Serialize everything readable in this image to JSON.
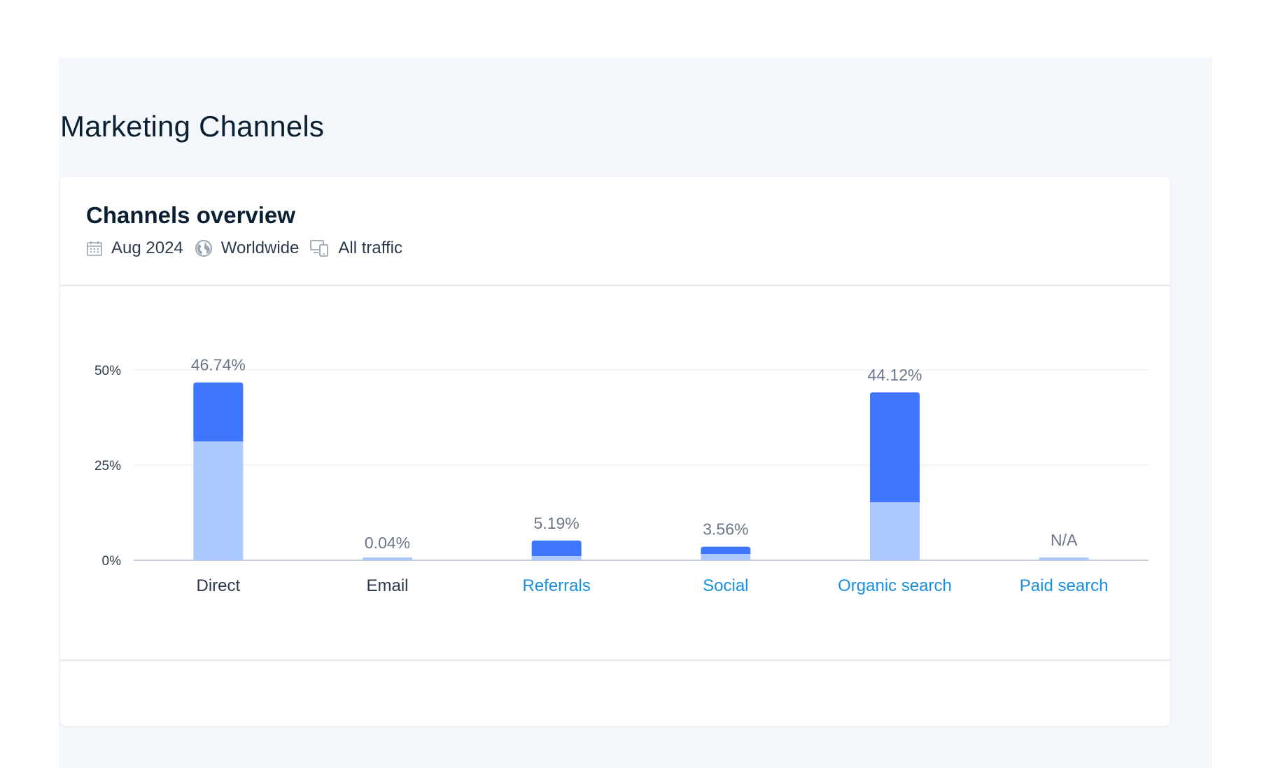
{
  "page": {
    "title": "Marketing Channels"
  },
  "card": {
    "title": "Channels overview",
    "meta": [
      {
        "icon": "calendar-icon",
        "label": "Aug 2024"
      },
      {
        "icon": "globe-icon",
        "label": "Worldwide"
      },
      {
        "icon": "devices-icon",
        "label": "All traffic"
      }
    ]
  },
  "colors": {
    "dark_segment": "#3f76fe",
    "light_segment": "#abc8ff",
    "link": "#1a8fe0",
    "text": "#2c3a4b",
    "muted": "#6b7788"
  },
  "chart_data": {
    "type": "bar",
    "stacked": true,
    "categories": [
      "Direct",
      "Email",
      "Referrals",
      "Social",
      "Organic search",
      "Paid search"
    ],
    "category_is_link": [
      false,
      false,
      true,
      true,
      true,
      true
    ],
    "value_labels": [
      "46.74%",
      "0.04%",
      "5.19%",
      "3.56%",
      "44.12%",
      "N/A"
    ],
    "totals": [
      46.74,
      0.04,
      5.19,
      3.56,
      44.12,
      0
    ],
    "series": [
      {
        "values": [
          31.2,
          0.04,
          1.1,
          1.6,
          15.2,
          0
        ]
      },
      {
        "values": [
          15.54,
          0,
          4.09,
          1.96,
          28.92,
          0
        ]
      }
    ],
    "yticks": [
      "0%",
      "25%",
      "50%"
    ],
    "ytick_values": [
      0,
      25,
      50
    ],
    "ylim": [
      0,
      50
    ],
    "grid": true
  }
}
